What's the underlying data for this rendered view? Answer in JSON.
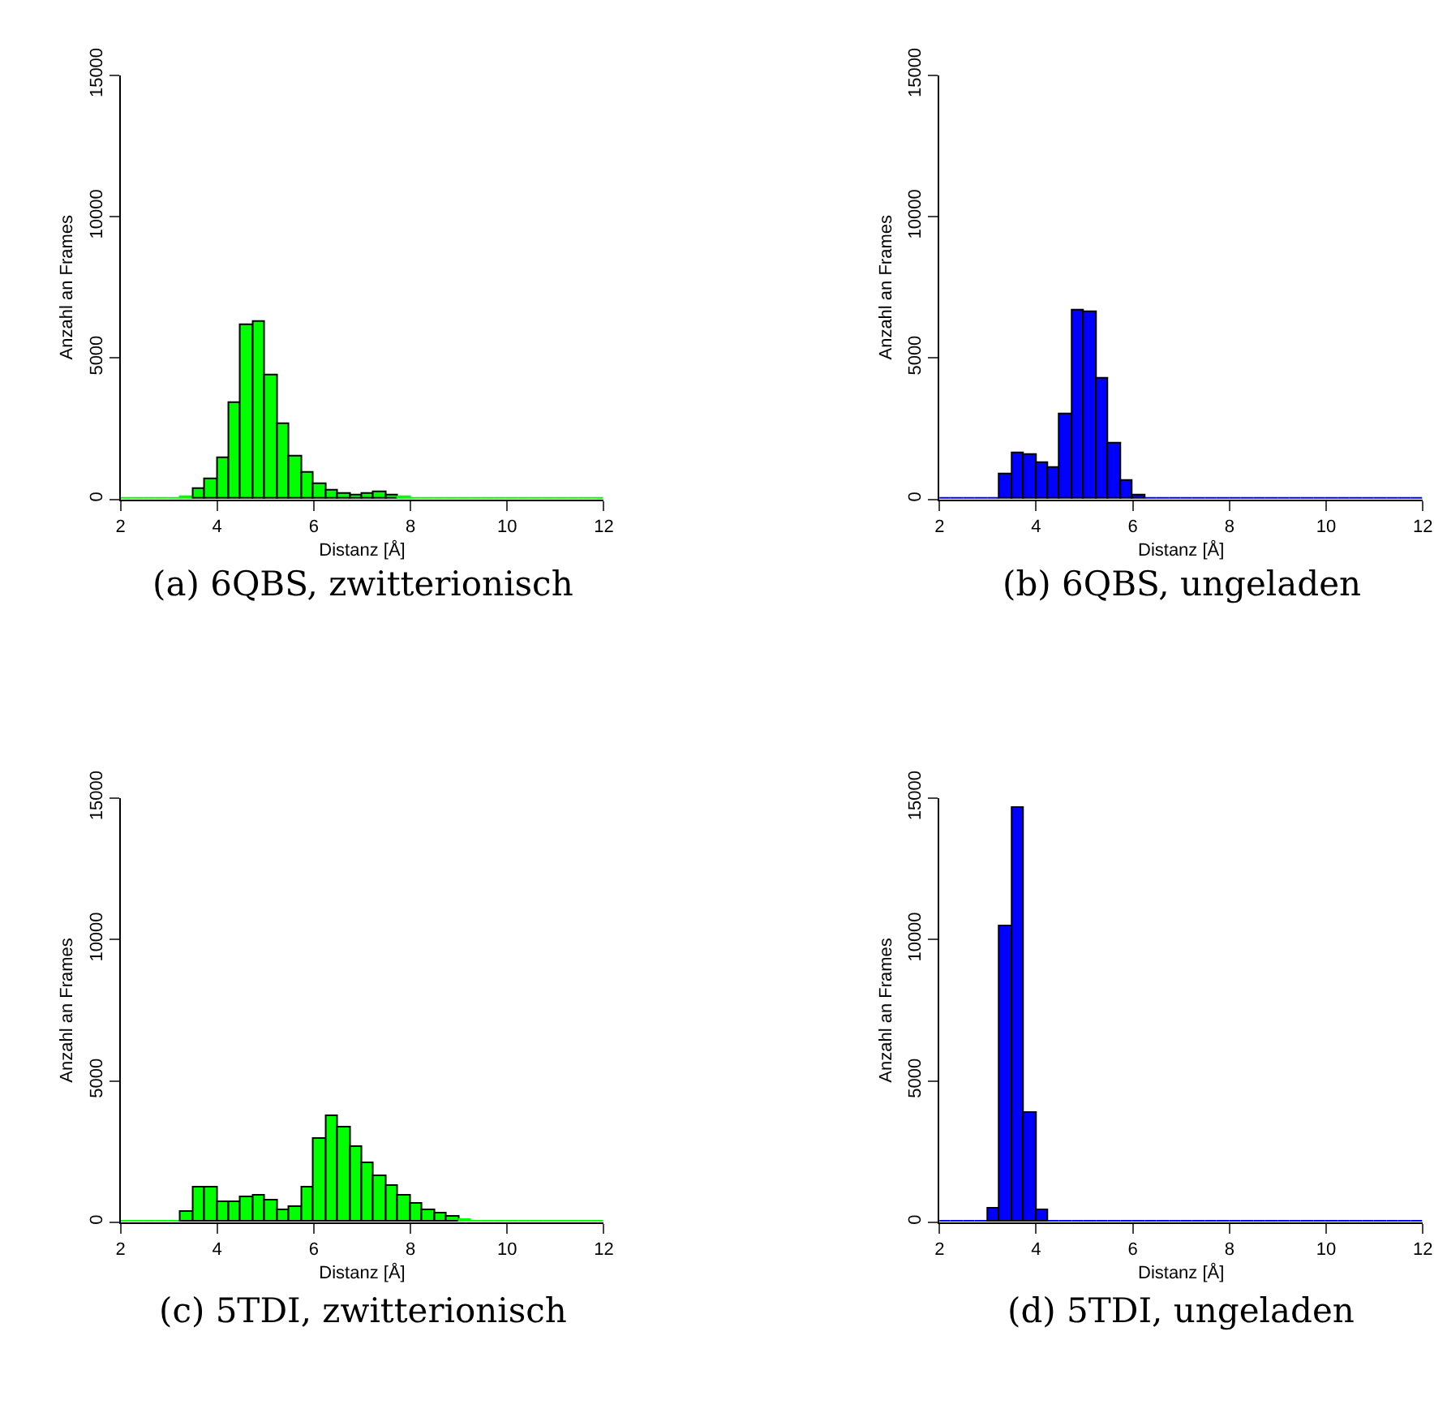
{
  "chart_data": [
    {
      "type": "histogram",
      "xlabel": "Distanz [Å]",
      "ylabel": "Anzahl an Frames",
      "annotations": [
        "(a) 6QBS, zwitterionisch"
      ],
      "color": "#00ff00",
      "xlim": [
        2,
        12
      ],
      "xticks": [
        2,
        4,
        6,
        8,
        10,
        12
      ],
      "ylim": [
        0,
        15000
      ],
      "yticks": [
        0,
        5000,
        10000,
        15000
      ],
      "bins": [
        2,
        2.25,
        2.5,
        2.75,
        3,
        3.25,
        3.5,
        3.75,
        4,
        4.25,
        4.5,
        4.75,
        5,
        5.25,
        5.5,
        5.75,
        6,
        6.25,
        6.5,
        6.75,
        7,
        7.25,
        7.5,
        7.75,
        8,
        8.25,
        8.5,
        8.75,
        9,
        9.25,
        9.5,
        9.75,
        10,
        10.25,
        10.5,
        10.75,
        11,
        11.25,
        11.5,
        11.75,
        12
      ],
      "values": [
        0,
        0,
        0,
        0,
        0,
        110,
        350,
        690,
        1460,
        3420,
        6190,
        6280,
        4380,
        2650,
        1500,
        920,
        560,
        320,
        220,
        170,
        190,
        230,
        130,
        80,
        40,
        10,
        0,
        0,
        0,
        0,
        0,
        0,
        0,
        0,
        0,
        0,
        0,
        0,
        0,
        0
      ]
    },
    {
      "type": "histogram",
      "xlabel": "Distanz [Å]",
      "ylabel": "Anzahl an Frames",
      "annotations": [
        "(b) 6QBS, ungeladen"
      ],
      "color": "#0000ff",
      "xlim": [
        2,
        12
      ],
      "xticks": [
        2,
        4,
        6,
        8,
        10,
        12
      ],
      "ylim": [
        0,
        15000
      ],
      "yticks": [
        0,
        5000,
        10000,
        15000
      ],
      "bins": [
        2,
        2.25,
        2.5,
        2.75,
        3,
        3.25,
        3.5,
        3.75,
        4,
        4.25,
        4.5,
        4.75,
        5,
        5.25,
        5.5,
        5.75,
        6,
        6.25,
        6.5,
        6.75,
        7,
        7.25,
        7.5,
        7.75,
        8,
        8.25,
        8.5,
        8.75,
        9,
        9.25,
        9.5,
        9.75,
        10,
        10.25,
        10.5,
        10.75,
        11,
        11.25,
        11.5,
        11.75,
        12
      ],
      "values": [
        0,
        0,
        0,
        0,
        50,
        900,
        1630,
        1570,
        1270,
        1100,
        3010,
        6690,
        6620,
        4260,
        2000,
        670,
        150,
        40,
        0,
        0,
        0,
        0,
        0,
        0,
        0,
        0,
        0,
        0,
        0,
        0,
        0,
        0,
        0,
        0,
        0,
        0,
        0,
        0,
        0,
        0
      ]
    },
    {
      "type": "histogram",
      "xlabel": "Distanz [Å]",
      "ylabel": "Anzahl an Frames",
      "annotations": [
        "(c) 5TDI, zwitterionisch"
      ],
      "color": "#00ff00",
      "xlim": [
        2,
        12
      ],
      "xticks": [
        2,
        4,
        6,
        8,
        10,
        12
      ],
      "ylim": [
        0,
        15000
      ],
      "yticks": [
        0,
        5000,
        10000,
        15000
      ],
      "bins": [
        2,
        2.25,
        2.5,
        2.75,
        3,
        3.25,
        3.5,
        3.75,
        4,
        4.25,
        4.5,
        4.75,
        5,
        5.25,
        5.5,
        5.75,
        6,
        6.25,
        6.5,
        6.75,
        7,
        7.25,
        7.5,
        7.75,
        8,
        8.25,
        8.5,
        8.75,
        9,
        9.25,
        9.5,
        9.75,
        10,
        10.25,
        10.5,
        10.75,
        11,
        11.25,
        11.5,
        11.75,
        12
      ],
      "values": [
        0,
        0,
        0,
        0,
        20,
        350,
        1250,
        1250,
        690,
        690,
        880,
        970,
        750,
        450,
        520,
        1250,
        2970,
        3780,
        3330,
        2690,
        2090,
        1650,
        1310,
        970,
        670,
        430,
        320,
        190,
        100,
        40,
        10,
        0,
        0,
        0,
        0,
        0,
        0,
        0,
        0,
        0
      ]
    },
    {
      "type": "histogram",
      "xlabel": "Distanz [Å]",
      "ylabel": "Anzahl an Frames",
      "annotations": [
        "(d) 5TDI, ungeladen"
      ],
      "color": "#0000ff",
      "xlim": [
        2,
        12
      ],
      "xticks": [
        2,
        4,
        6,
        8,
        10,
        12
      ],
      "ylim": [
        0,
        15000
      ],
      "yticks": [
        0,
        5000,
        10000,
        15000
      ],
      "bins": [
        2,
        2.25,
        2.5,
        2.75,
        3,
        3.25,
        3.5,
        3.75,
        4,
        4.25,
        4.5,
        4.75,
        5,
        5.25,
        5.5,
        5.75,
        6,
        6.25,
        6.5,
        6.75,
        7,
        7.25,
        7.5,
        7.75,
        8,
        8.25,
        8.5,
        8.75,
        9,
        9.25,
        9.5,
        9.75,
        10,
        10.25,
        10.5,
        10.75,
        11,
        11.25,
        11.5,
        11.75,
        12
      ],
      "values": [
        0,
        0,
        0,
        0,
        470,
        10470,
        14680,
        3890,
        430,
        50,
        0,
        0,
        0,
        0,
        0,
        0,
        0,
        0,
        0,
        0,
        0,
        0,
        0,
        0,
        0,
        0,
        0,
        0,
        0,
        0,
        0,
        0,
        0,
        0,
        0,
        0,
        0,
        0,
        0,
        0
      ]
    }
  ]
}
